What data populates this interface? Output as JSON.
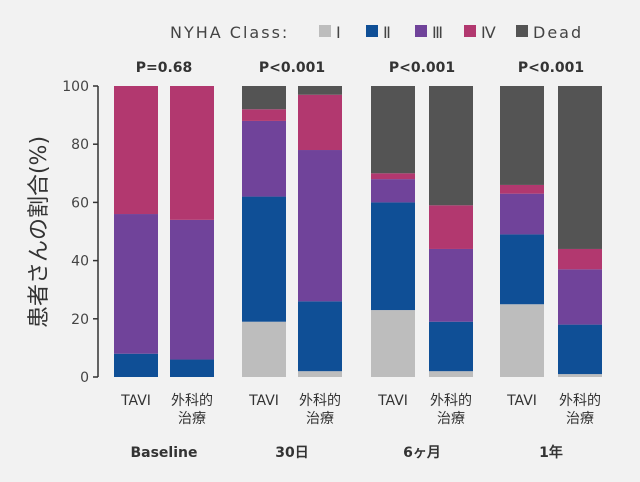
{
  "chart_data": {
    "type": "bar",
    "stacked": true,
    "ylabel": "患者さんの割合(%)",
    "ylim": [
      0,
      100
    ],
    "yticks": [
      0,
      20,
      40,
      60,
      80,
      100
    ],
    "legend_title": "NYHA Class:",
    "legend_position": "top-right",
    "series_names": [
      "Ⅰ",
      "Ⅱ",
      "Ⅲ",
      "Ⅳ",
      "Dead"
    ],
    "colors": [
      "#bdbdbd",
      "#0f4f96",
      "#70439a",
      "#b2386f",
      "#545454"
    ],
    "groups": [
      {
        "label": "Baseline",
        "pvalue": "P=0.68",
        "bars": [
          {
            "label": [
              "TAVI"
            ],
            "values": [
              0,
              8,
              48,
              44,
              0
            ]
          },
          {
            "label": [
              "外科的",
              "治療"
            ],
            "values": [
              0,
              6,
              48,
              46,
              0
            ]
          }
        ]
      },
      {
        "label": "30日",
        "pvalue": "P<0.001",
        "bars": [
          {
            "label": [
              "TAVI"
            ],
            "values": [
              19,
              43,
              26,
              4,
              8
            ]
          },
          {
            "label": [
              "外科的",
              "治療"
            ],
            "values": [
              2,
              24,
              52,
              19,
              3
            ]
          }
        ]
      },
      {
        "label": "6ヶ月",
        "pvalue": "P<0.001",
        "bars": [
          {
            "label": [
              "TAVI"
            ],
            "values": [
              23,
              37,
              8,
              2,
              30
            ]
          },
          {
            "label": [
              "外科的",
              "治療"
            ],
            "values": [
              2,
              17,
              25,
              15,
              41
            ]
          }
        ]
      },
      {
        "label": "1年",
        "pvalue": "P<0.001",
        "bars": [
          {
            "label": [
              "TAVI"
            ],
            "values": [
              25,
              24,
              14,
              3,
              34
            ]
          },
          {
            "label": [
              "外科的",
              "治療"
            ],
            "values": [
              1,
              17,
              19,
              7,
              56
            ]
          }
        ]
      }
    ]
  }
}
